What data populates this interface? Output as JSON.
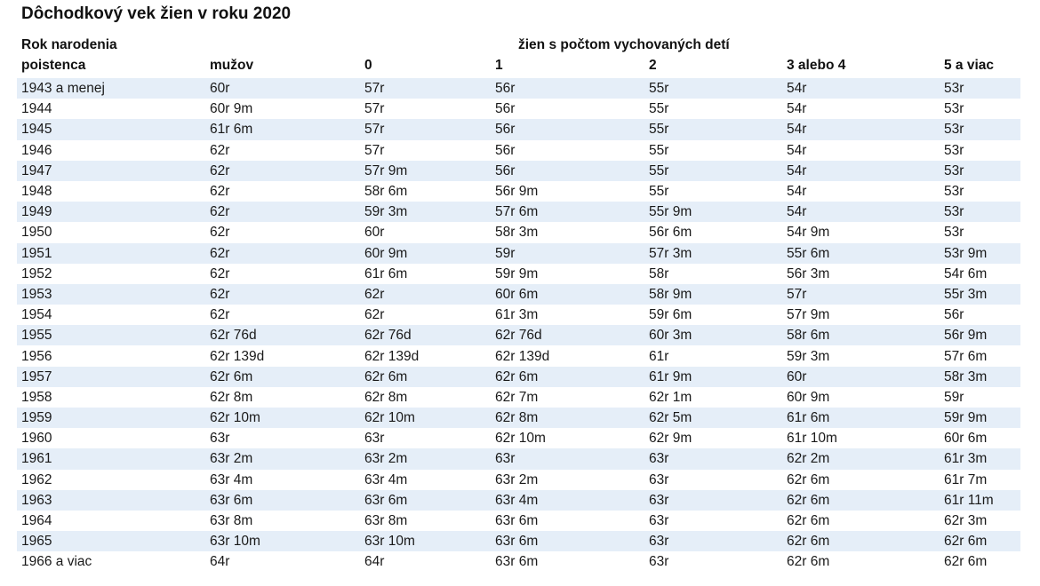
{
  "title": "Dôchodkový vek žien v roku 2020",
  "header": {
    "col0_line1": "Rok narodenia",
    "col0_line2": "poistenca",
    "group": "žien s počtom vychovaných detí",
    "columns": [
      "mužov",
      "0",
      "1",
      "2",
      "3 alebo 4",
      "5 a viac"
    ]
  },
  "rows": [
    [
      "1943 a menej",
      "60r",
      "57r",
      "56r",
      "55r",
      "54r",
      "53r"
    ],
    [
      "1944",
      "60r 9m",
      "57r",
      "56r",
      "55r",
      "54r",
      "53r"
    ],
    [
      "1945",
      "61r 6m",
      "57r",
      "56r",
      "55r",
      "54r",
      "53r"
    ],
    [
      "1946",
      "62r",
      "57r",
      "56r",
      "55r",
      "54r",
      "53r"
    ],
    [
      "1947",
      "62r",
      "57r 9m",
      "56r",
      "55r",
      "54r",
      "53r"
    ],
    [
      "1948",
      "62r",
      "58r 6m",
      "56r 9m",
      "55r",
      "54r",
      "53r"
    ],
    [
      "1949",
      "62r",
      "59r 3m",
      "57r 6m",
      "55r 9m",
      "54r",
      "53r"
    ],
    [
      "1950",
      "62r",
      "60r",
      "58r 3m",
      "56r 6m",
      "54r 9m",
      "53r"
    ],
    [
      "1951",
      "62r",
      "60r 9m",
      "59r",
      "57r 3m",
      "55r 6m",
      "53r 9m"
    ],
    [
      "1952",
      "62r",
      "61r 6m",
      "59r 9m",
      "58r",
      "56r 3m",
      "54r 6m"
    ],
    [
      "1953",
      "62r",
      "62r",
      "60r 6m",
      "58r 9m",
      "57r",
      "55r 3m"
    ],
    [
      "1954",
      "62r",
      "62r",
      "61r 3m",
      "59r 6m",
      "57r 9m",
      "56r"
    ],
    [
      "1955",
      "62r 76d",
      "62r 76d",
      "62r 76d",
      "60r 3m",
      "58r 6m",
      "56r 9m"
    ],
    [
      "1956",
      "62r 139d",
      "62r 139d",
      "62r 139d",
      "61r",
      "59r 3m",
      "57r 6m"
    ],
    [
      "1957",
      "62r 6m",
      "62r 6m",
      "62r 6m",
      "61r 9m",
      "60r",
      "58r 3m"
    ],
    [
      "1958",
      "62r 8m",
      "62r 8m",
      "62r 7m",
      "62r 1m",
      "60r 9m",
      "59r"
    ],
    [
      "1959",
      "62r 10m",
      "62r 10m",
      "62r 8m",
      "62r 5m",
      "61r 6m",
      "59r 9m"
    ],
    [
      "1960",
      "63r",
      "63r",
      "62r 10m",
      "62r 9m",
      "61r 10m",
      "60r 6m"
    ],
    [
      "1961",
      "63r 2m",
      "63r 2m",
      "63r",
      "63r",
      "62r 2m",
      "61r 3m"
    ],
    [
      "1962",
      "63r 4m",
      "63r 4m",
      "63r 2m",
      "63r",
      "62r 6m",
      "61r 7m"
    ],
    [
      "1963",
      "63r 6m",
      "63r 6m",
      "63r 4m",
      "63r",
      "62r 6m",
      "61r 11m"
    ],
    [
      "1964",
      "63r 8m",
      "63r 8m",
      "63r 6m",
      "63r",
      "62r 6m",
      "62r 3m"
    ],
    [
      "1965",
      "63r 10m",
      "63r 10m",
      "63r 6m",
      "63r",
      "62r 6m",
      "62r 6m"
    ],
    [
      "1966 a viac",
      "64r",
      "64r",
      "63r 6m",
      "63r",
      "62r 6m",
      "62r 6m"
    ]
  ]
}
